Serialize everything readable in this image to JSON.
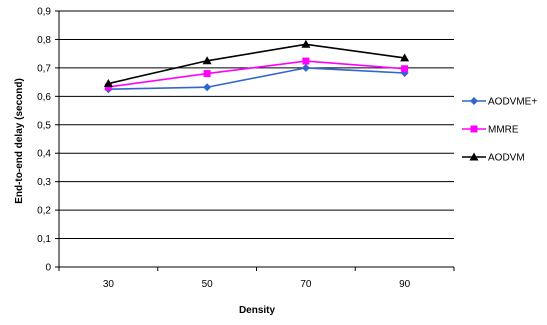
{
  "chart_data": {
    "type": "line",
    "title": "",
    "xlabel": "Density",
    "ylabel": "End-to-end delay (second)",
    "categories": [
      "30",
      "50",
      "70",
      "90"
    ],
    "ylim": [
      0,
      0.9
    ],
    "y_ticks": [
      "0",
      "0,1",
      "0,2",
      "0,3",
      "0,4",
      "0,5",
      "0,6",
      "0,7",
      "0,8",
      "0,9"
    ],
    "grid": "horizontal",
    "legend_position": "right",
    "series": [
      {
        "name": "AODVME+",
        "values": [
          0.625,
          0.632,
          0.7,
          0.682
        ],
        "color": "#3366cc",
        "marker": "diamond"
      },
      {
        "name": "MMRE",
        "values": [
          0.633,
          0.68,
          0.724,
          0.697
        ],
        "color": "#ff00ff",
        "marker": "square"
      },
      {
        "name": "AODVM",
        "values": [
          0.645,
          0.725,
          0.783,
          0.735
        ],
        "color": "#000000",
        "marker": "triangle"
      }
    ]
  }
}
